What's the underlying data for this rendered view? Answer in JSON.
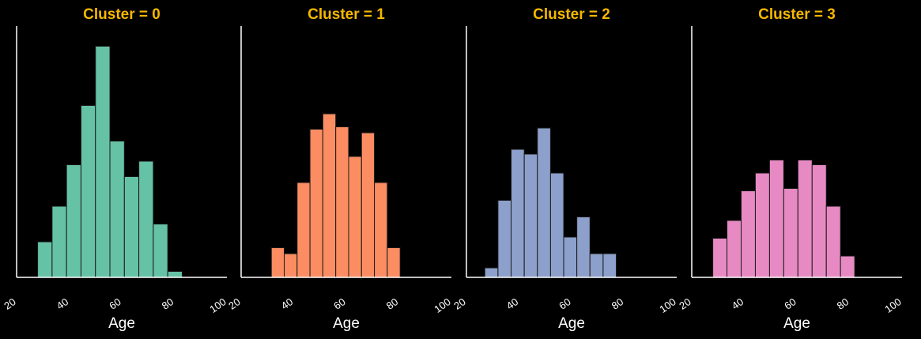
{
  "chart_data": [
    {
      "type": "bar",
      "title": "Cluster = 0",
      "xlabel": "Age",
      "ylabel": "",
      "color": "#66c2a5",
      "xlim": [
        20,
        100
      ],
      "xticks": [
        "20",
        "40",
        "60",
        "80",
        "100"
      ],
      "bins": [
        {
          "x0": 28,
          "x1": 33.5,
          "count": 3
        },
        {
          "x0": 33.5,
          "x1": 39,
          "count": 6
        },
        {
          "x0": 39,
          "x1": 44.5,
          "count": 9.5
        },
        {
          "x0": 44.5,
          "x1": 50,
          "count": 14.5
        },
        {
          "x0": 50,
          "x1": 55.5,
          "count": 19.5
        },
        {
          "x0": 55.5,
          "x1": 61,
          "count": 11.5
        },
        {
          "x0": 61,
          "x1": 66.5,
          "count": 8.5
        },
        {
          "x0": 66.5,
          "x1": 72,
          "count": 9.8
        },
        {
          "x0": 72,
          "x1": 77.5,
          "count": 4.5
        },
        {
          "x0": 77.5,
          "x1": 83,
          "count": 0.5
        }
      ]
    },
    {
      "type": "bar",
      "title": "Cluster = 1",
      "xlabel": "Age",
      "ylabel": "",
      "color": "#fc8d62",
      "xlim": [
        20,
        100
      ],
      "xticks": [
        "20",
        "40",
        "60",
        "80",
        "100"
      ],
      "bins": [
        {
          "x0": 31.5,
          "x1": 36.4,
          "count": 2.5
        },
        {
          "x0": 36.4,
          "x1": 41.3,
          "count": 2
        },
        {
          "x0": 41.3,
          "x1": 46.2,
          "count": 8
        },
        {
          "x0": 46.2,
          "x1": 51.1,
          "count": 12.5
        },
        {
          "x0": 51.1,
          "x1": 56,
          "count": 13.8
        },
        {
          "x0": 56,
          "x1": 60.9,
          "count": 12.7
        },
        {
          "x0": 60.9,
          "x1": 65.8,
          "count": 10.2
        },
        {
          "x0": 65.8,
          "x1": 70.7,
          "count": 12.2
        },
        {
          "x0": 70.7,
          "x1": 75.6,
          "count": 8
        },
        {
          "x0": 75.6,
          "x1": 80.5,
          "count": 2.5
        }
      ]
    },
    {
      "type": "bar",
      "title": "Cluster = 2",
      "xlabel": "Age",
      "ylabel": "",
      "color": "#8da0cb",
      "xlim": [
        20,
        100
      ],
      "xticks": [
        "20",
        "40",
        "60",
        "80",
        "100"
      ],
      "bins": [
        {
          "x0": 27,
          "x1": 32,
          "count": 0.8
        },
        {
          "x0": 32,
          "x1": 37,
          "count": 6.5
        },
        {
          "x0": 37,
          "x1": 42,
          "count": 10.8
        },
        {
          "x0": 42,
          "x1": 47,
          "count": 10.4
        },
        {
          "x0": 47,
          "x1": 52,
          "count": 12.6
        },
        {
          "x0": 52,
          "x1": 57,
          "count": 8.8
        },
        {
          "x0": 57,
          "x1": 62,
          "count": 3.4
        },
        {
          "x0": 62,
          "x1": 67,
          "count": 5.1
        },
        {
          "x0": 67,
          "x1": 72,
          "count": 2
        },
        {
          "x0": 72,
          "x1": 77,
          "count": 2
        }
      ]
    },
    {
      "type": "bar",
      "title": "Cluster = 3",
      "xlabel": "Age",
      "ylabel": "",
      "color": "#e78ac3",
      "xlim": [
        20,
        100
      ],
      "xticks": [
        "20",
        "40",
        "60",
        "80",
        "100"
      ],
      "bins": [
        {
          "x0": 28,
          "x1": 33.4,
          "count": 3.3
        },
        {
          "x0": 33.4,
          "x1": 38.8,
          "count": 4.8
        },
        {
          "x0": 38.8,
          "x1": 44.2,
          "count": 7.3
        },
        {
          "x0": 44.2,
          "x1": 49.6,
          "count": 8.8
        },
        {
          "x0": 49.6,
          "x1": 55,
          "count": 9.9
        },
        {
          "x0": 55,
          "x1": 60.4,
          "count": 7.5
        },
        {
          "x0": 60.4,
          "x1": 65.8,
          "count": 9.9
        },
        {
          "x0": 65.8,
          "x1": 71.2,
          "count": 9.5
        },
        {
          "x0": 71.2,
          "x1": 76.6,
          "count": 6
        },
        {
          "x0": 76.6,
          "x1": 82,
          "count": 1.8
        }
      ]
    }
  ]
}
